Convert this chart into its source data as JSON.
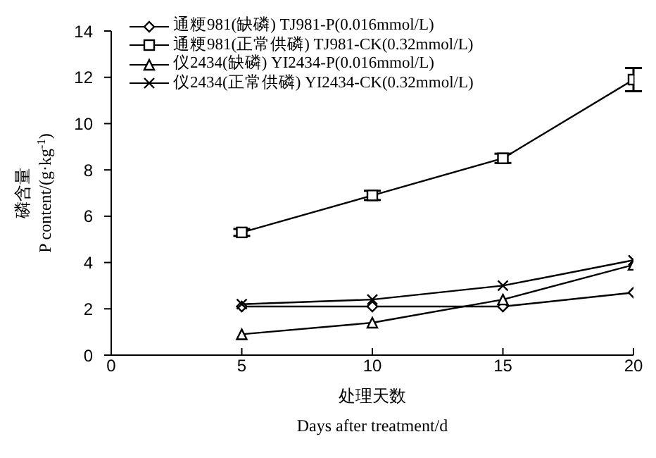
{
  "chart_data": {
    "type": "line",
    "xlabel": "处理天数\nDays after treatment/d",
    "ylabel": "磷含量\nP content/(g·kg$^{-1}$)",
    "x": [
      5,
      10,
      15,
      20
    ],
    "xlim": [
      0,
      20
    ],
    "xticks": [
      0,
      5,
      10,
      15,
      20
    ],
    "ylim": [
      0,
      14
    ],
    "yticks": [
      0,
      2,
      4,
      6,
      8,
      10,
      12,
      14
    ],
    "legend": "top left",
    "grid": false,
    "line_style": "solid",
    "series": [
      {
        "name": "通粳981(缺磷) TJ981-P(0.016mmol/L)",
        "color": "#000000",
        "marker": "diamond",
        "values": [
          2.1,
          2.1,
          2.1,
          2.7
        ]
      },
      {
        "name": "通粳981(正常供磷) TJ981-CK(0.32mmol/L)",
        "color": "#000000",
        "marker": "square",
        "values": [
          5.3,
          6.9,
          8.5,
          11.9
        ],
        "errors": [
          0.15,
          0.2,
          0.2,
          0.5
        ]
      },
      {
        "name": "仪2434(缺磷) YI2434-P(0.016mmol/L)",
        "color": "#000000",
        "marker": "triangle",
        "values": [
          0.9,
          1.4,
          2.4,
          3.9
        ]
      },
      {
        "name": "仪2434(正常供磷) YI2434-CK(0.32mmol/L)",
        "color": "#000000",
        "marker": "cross",
        "values": [
          2.2,
          2.4,
          3.0,
          4.1
        ]
      }
    ]
  }
}
